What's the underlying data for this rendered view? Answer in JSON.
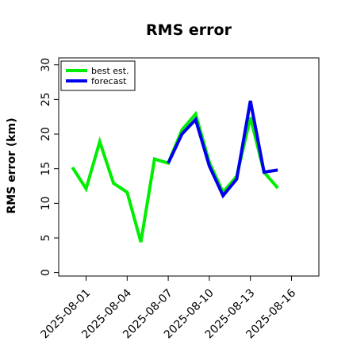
{
  "chart_data": {
    "type": "line",
    "title": "RMS error",
    "xlabel": "",
    "ylabel": "RMS error (km)",
    "x_ticks": [
      "2025-08-01",
      "2025-08-04",
      "2025-08-07",
      "2025-08-10",
      "2025-08-13",
      "2025-08-16"
    ],
    "highlighted_tick": "2025-08-07",
    "highlight_color": "#228b22",
    "y_ticks": [
      0,
      5,
      10,
      15,
      20,
      25,
      30
    ],
    "xlim": [
      "2025-07-30",
      "2025-08-18"
    ],
    "ylim": [
      -0.5,
      31
    ],
    "grid": false,
    "legend_position": "top-left",
    "series": [
      {
        "name": "best est.",
        "color": "#00ee00",
        "x": [
          "2025-07-31",
          "2025-08-01",
          "2025-08-02",
          "2025-08-03",
          "2025-08-04",
          "2025-08-05",
          "2025-08-06",
          "2025-08-07",
          "2025-08-08",
          "2025-08-09",
          "2025-08-10",
          "2025-08-11",
          "2025-08-12",
          "2025-08-13",
          "2025-08-14",
          "2025-08-15"
        ],
        "values": [
          15.2,
          12.1,
          18.9,
          12.9,
          11.6,
          4.4,
          16.4,
          15.8,
          20.6,
          22.9,
          15.9,
          11.6,
          13.9,
          22.4,
          14.5,
          12.2
        ]
      },
      {
        "name": "forecast",
        "color": "#0000ee",
        "x": [
          "2025-08-07",
          "2025-08-08",
          "2025-08-09",
          "2025-08-10",
          "2025-08-11",
          "2025-08-12",
          "2025-08-13",
          "2025-08-14",
          "2025-08-15"
        ],
        "values": [
          15.8,
          20.0,
          22.1,
          15.4,
          11.1,
          13.5,
          24.8,
          14.5,
          14.8
        ]
      }
    ]
  }
}
